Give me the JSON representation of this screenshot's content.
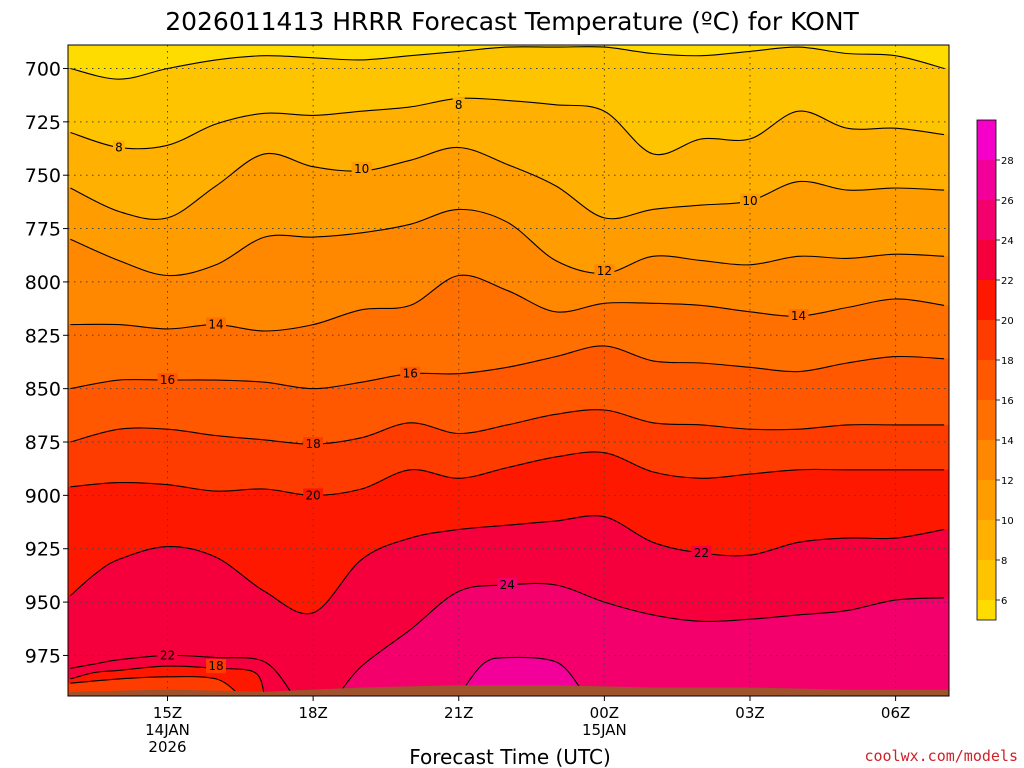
{
  "title": "2026011413 HRRR Forecast Temperature (ºC) for KONT",
  "credit": "coolwx.com/models",
  "colors": {
    "contour_line": "#000000",
    "terrain": "#a0522d",
    "grid": "#444444",
    "bands": [
      "#ffdc00",
      "#ffc400",
      "#ffb000",
      "#ff9c00",
      "#ff8800",
      "#ff7000",
      "#ff5800",
      "#ff3c00",
      "#ff1800",
      "#f5003c",
      "#f3006c",
      "#f3009a",
      "#f500c8"
    ]
  },
  "chart_data": {
    "type": "contour",
    "title": "2026011413 HRRR Forecast Temperature (ºC) for KONT",
    "xlabel": "Forecast Time (UTC)",
    "ylabel": "",
    "x_ticks": [
      {
        "hour": 2,
        "lines": [
          "15Z",
          "14JAN",
          "2026"
        ]
      },
      {
        "hour": 5,
        "lines": [
          "18Z"
        ]
      },
      {
        "hour": 8,
        "lines": [
          "21Z"
        ]
      },
      {
        "hour": 11,
        "lines": [
          "00Z",
          "15JAN"
        ]
      },
      {
        "hour": 14,
        "lines": [
          "03Z"
        ]
      },
      {
        "hour": 17,
        "lines": [
          "06Z"
        ]
      }
    ],
    "xlim": [
      -0.05,
      18.1
    ],
    "y_ticks": [
      700,
      725,
      750,
      775,
      800,
      825,
      850,
      875,
      900,
      925,
      950,
      975
    ],
    "ylim": [
      689,
      994
    ],
    "y_scale": "pressure (inverted)",
    "grid": true,
    "colorbar": {
      "ticks": [
        6,
        8,
        10,
        12,
        14,
        16,
        18,
        20,
        22,
        24,
        26,
        28
      ],
      "range": [
        5,
        30
      ]
    },
    "contours": [
      {
        "level": 6,
        "points": [
          [
            0,
            700
          ],
          [
            1,
            705
          ],
          [
            2,
            700
          ],
          [
            3,
            696
          ],
          [
            4,
            694
          ],
          [
            5,
            695
          ],
          [
            6,
            696
          ],
          [
            7,
            694
          ],
          [
            8,
            692
          ],
          [
            9,
            690
          ],
          [
            10,
            690
          ],
          [
            11,
            690
          ],
          [
            12,
            693
          ],
          [
            13,
            694
          ],
          [
            14,
            692
          ],
          [
            15,
            690
          ],
          [
            16,
            693
          ],
          [
            17,
            694
          ],
          [
            18,
            700
          ]
        ]
      },
      {
        "level": 8,
        "points": [
          [
            0,
            730
          ],
          [
            1,
            737
          ],
          [
            2,
            736
          ],
          [
            3,
            726
          ],
          [
            4,
            721
          ],
          [
            5,
            722
          ],
          [
            6,
            720
          ],
          [
            7,
            718
          ],
          [
            8,
            714
          ],
          [
            9,
            715
          ],
          [
            10,
            717
          ],
          [
            11,
            720
          ],
          [
            12,
            740
          ],
          [
            13,
            733
          ],
          [
            14,
            733
          ],
          [
            15,
            720
          ],
          [
            16,
            728
          ],
          [
            17,
            728
          ],
          [
            18,
            731
          ]
        ]
      },
      {
        "level": 10,
        "points": [
          [
            0,
            756
          ],
          [
            1,
            767
          ],
          [
            2,
            770
          ],
          [
            3,
            755
          ],
          [
            4,
            740
          ],
          [
            5,
            746
          ],
          [
            6,
            748
          ],
          [
            7,
            743
          ],
          [
            8,
            737
          ],
          [
            9,
            745
          ],
          [
            10,
            755
          ],
          [
            11,
            770
          ],
          [
            12,
            766
          ],
          [
            13,
            764
          ],
          [
            14,
            762
          ],
          [
            15,
            753
          ],
          [
            16,
            757
          ],
          [
            17,
            756
          ],
          [
            18,
            757
          ]
        ]
      },
      {
        "level": 12,
        "points": [
          [
            0,
            780
          ],
          [
            1,
            790
          ],
          [
            2,
            797
          ],
          [
            3,
            792
          ],
          [
            4,
            779
          ],
          [
            5,
            779
          ],
          [
            6,
            777
          ],
          [
            7,
            773
          ],
          [
            8,
            766
          ],
          [
            9,
            772
          ],
          [
            10,
            790
          ],
          [
            11,
            796
          ],
          [
            12,
            788
          ],
          [
            13,
            790
          ],
          [
            14,
            792
          ],
          [
            15,
            788
          ],
          [
            16,
            789
          ],
          [
            17,
            787
          ],
          [
            18,
            788
          ]
        ]
      },
      {
        "level": 14,
        "points": [
          [
            0,
            820
          ],
          [
            1,
            820
          ],
          [
            2,
            822
          ],
          [
            3,
            820
          ],
          [
            4,
            823
          ],
          [
            5,
            820
          ],
          [
            6,
            813
          ],
          [
            7,
            811
          ],
          [
            8,
            797
          ],
          [
            9,
            804
          ],
          [
            10,
            814
          ],
          [
            11,
            810
          ],
          [
            12,
            810
          ],
          [
            13,
            811
          ],
          [
            14,
            814
          ],
          [
            15,
            816
          ],
          [
            16,
            812
          ],
          [
            17,
            808
          ],
          [
            18,
            811
          ]
        ]
      },
      {
        "level": 16,
        "points": [
          [
            0,
            850
          ],
          [
            1,
            846
          ],
          [
            2,
            846
          ],
          [
            3,
            846
          ],
          [
            4,
            847
          ],
          [
            5,
            850
          ],
          [
            6,
            847
          ],
          [
            7,
            843
          ],
          [
            8,
            843
          ],
          [
            9,
            840
          ],
          [
            10,
            835
          ],
          [
            11,
            830
          ],
          [
            12,
            837
          ],
          [
            13,
            838
          ],
          [
            14,
            840
          ],
          [
            15,
            842
          ],
          [
            16,
            838
          ],
          [
            17,
            835
          ],
          [
            18,
            836
          ]
        ]
      },
      {
        "level": 18,
        "points": [
          [
            0,
            875
          ],
          [
            1,
            869
          ],
          [
            2,
            869
          ],
          [
            3,
            872
          ],
          [
            4,
            874
          ],
          [
            5,
            876
          ],
          [
            6,
            873
          ],
          [
            7,
            866
          ],
          [
            8,
            871
          ],
          [
            9,
            867
          ],
          [
            10,
            862
          ],
          [
            11,
            860
          ],
          [
            12,
            866
          ],
          [
            13,
            867
          ],
          [
            14,
            869
          ],
          [
            15,
            869
          ],
          [
            16,
            867
          ],
          [
            17,
            867
          ],
          [
            18,
            867
          ]
        ]
      },
      {
        "level": 20,
        "points": [
          [
            0,
            896
          ],
          [
            1,
            894
          ],
          [
            2,
            895
          ],
          [
            3,
            898
          ],
          [
            4,
            897
          ],
          [
            5,
            900
          ],
          [
            6,
            897
          ],
          [
            7,
            888
          ],
          [
            8,
            892
          ],
          [
            9,
            887
          ],
          [
            10,
            882
          ],
          [
            11,
            880
          ],
          [
            12,
            889
          ],
          [
            13,
            892
          ],
          [
            14,
            890
          ],
          [
            15,
            888
          ],
          [
            16,
            888
          ],
          [
            17,
            888
          ],
          [
            18,
            888
          ]
        ]
      },
      {
        "level": 22,
        "points": [
          [
            0,
            947
          ],
          [
            0.5,
            937
          ],
          [
            1,
            930
          ],
          [
            2,
            924
          ],
          [
            3,
            929
          ],
          [
            4,
            945
          ],
          [
            5,
            955
          ],
          [
            6,
            930
          ],
          [
            7,
            920
          ],
          [
            8,
            916
          ],
          [
            9,
            914
          ],
          [
            10,
            912
          ],
          [
            11,
            910
          ],
          [
            12,
            922
          ],
          [
            13,
            927
          ],
          [
            14,
            928
          ],
          [
            15,
            922
          ],
          [
            16,
            920
          ],
          [
            17,
            920
          ],
          [
            18,
            916
          ]
        ]
      },
      {
        "level": 24,
        "points": [
          [
            5.5,
            994
          ],
          [
            6,
            980
          ],
          [
            7,
            963
          ],
          [
            8,
            945
          ],
          [
            9,
            942
          ],
          [
            10,
            942
          ],
          [
            11,
            950
          ],
          [
            12,
            956
          ],
          [
            13,
            959
          ],
          [
            14,
            958
          ],
          [
            15,
            956
          ],
          [
            16,
            954
          ],
          [
            17,
            949
          ],
          [
            18,
            948
          ]
        ]
      },
      {
        "level": 26,
        "points": [
          [
            8,
            994
          ],
          [
            8.5,
            979
          ],
          [
            9,
            976
          ],
          [
            10,
            978
          ],
          [
            10.5,
            990
          ]
        ]
      },
      {
        "level": 22,
        "points": [
          [
            0,
            981
          ],
          [
            0.5,
            979
          ],
          [
            1,
            977
          ],
          [
            2,
            975
          ],
          [
            3,
            976
          ],
          [
            4,
            978
          ],
          [
            4.6,
            994
          ]
        ]
      },
      {
        "level": 20,
        "points": [
          [
            0,
            986
          ],
          [
            0.5,
            983
          ],
          [
            1,
            982
          ],
          [
            2,
            980
          ],
          [
            3,
            981
          ],
          [
            3.8,
            983
          ],
          [
            4,
            994
          ]
        ]
      },
      {
        "level": 18,
        "points": [
          [
            0,
            988
          ],
          [
            1,
            986
          ],
          [
            2,
            985
          ],
          [
            3,
            986
          ],
          [
            3.5,
            994
          ]
        ]
      }
    ],
    "contour_labels": [
      {
        "text": "8",
        "x": 8.0,
        "y": 717
      },
      {
        "text": "8",
        "x": 1.0,
        "y": 737
      },
      {
        "text": "10",
        "x": 6.0,
        "y": 747
      },
      {
        "text": "10",
        "x": 14.0,
        "y": 762
      },
      {
        "text": "12",
        "x": 11.0,
        "y": 795
      },
      {
        "text": "14",
        "x": 3.0,
        "y": 820
      },
      {
        "text": "14",
        "x": 15.0,
        "y": 816
      },
      {
        "text": "16",
        "x": 2.0,
        "y": 846
      },
      {
        "text": "16",
        "x": 7.0,
        "y": 843
      },
      {
        "text": "18",
        "x": 5.0,
        "y": 876
      },
      {
        "text": "20",
        "x": 5.0,
        "y": 900
      },
      {
        "text": "22",
        "x": 13.0,
        "y": 927
      },
      {
        "text": "24",
        "x": 9.0,
        "y": 942
      },
      {
        "text": "22",
        "x": 2.0,
        "y": 975
      },
      {
        "text": "18",
        "x": 3.0,
        "y": 980
      }
    ],
    "terrain_top": [
      [
        0,
        992
      ],
      [
        2,
        991
      ],
      [
        4,
        992
      ],
      [
        5,
        991
      ],
      [
        6,
        990
      ],
      [
        8,
        989
      ],
      [
        10,
        989
      ],
      [
        12,
        990
      ],
      [
        14,
        990
      ],
      [
        16,
        991
      ],
      [
        18,
        991
      ]
    ]
  }
}
